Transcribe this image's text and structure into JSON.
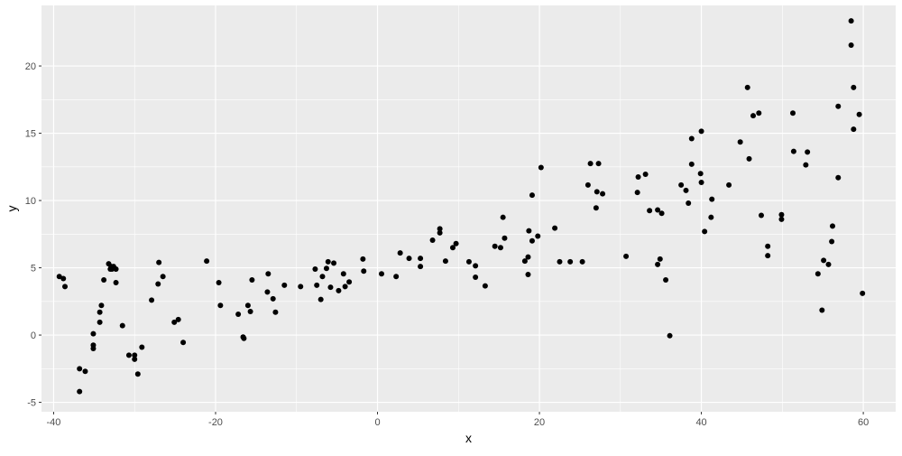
{
  "chart_data": {
    "type": "scatter",
    "xlabel": "x",
    "ylabel": "y",
    "xlim": [
      -41.5,
      64
    ],
    "ylim": [
      -5.7,
      24.5
    ],
    "x_ticks": [
      -40,
      -20,
      0,
      20,
      40,
      60
    ],
    "y_ticks": [
      -5,
      0,
      5,
      10,
      15,
      20
    ],
    "grid": true,
    "panel_background": "#EBEBEB",
    "point_color": "#000000",
    "x": [
      -39.3,
      -38.8,
      -38.6,
      -36.8,
      -36.8,
      -36.1,
      -35.1,
      -35.1,
      -35.1,
      -34.3,
      -34.3,
      -34.1,
      -33.8,
      -33.2,
      -33.0,
      -32.9,
      -32.8,
      -32.6,
      -32.3,
      -32.3,
      -31.5,
      -30.7,
      -30.0,
      -30.0,
      -29.6,
      -29.1,
      -27.9,
      -27.1,
      -27.0,
      -26.5,
      -25.1,
      -24.6,
      -24.0,
      -21.1,
      -19.6,
      -19.4,
      -17.2,
      -16.6,
      -16.5,
      -16.0,
      -15.7,
      -15.5,
      -13.6,
      -13.5,
      -12.9,
      -12.6,
      -11.5,
      -9.5,
      -7.7,
      -7.5,
      -7.0,
      -6.8,
      -6.3,
      -6.1,
      -5.8,
      -5.4,
      -4.8,
      -4.2,
      -4.0,
      -3.5,
      -1.8,
      -1.7,
      0.5,
      2.3,
      2.8,
      3.9,
      5.3,
      5.3,
      6.8,
      7.7,
      7.7,
      8.4,
      9.3,
      9.7,
      11.3,
      12.1,
      12.1,
      13.3,
      14.5,
      15.2,
      15.5,
      15.7,
      18.2,
      18.6,
      18.6,
      18.7,
      19.1,
      19.1,
      19.8,
      20.2,
      21.9,
      22.5,
      23.8,
      25.3,
      26.0,
      26.3,
      27.0,
      27.1,
      27.3,
      27.8,
      30.7,
      32.1,
      32.2,
      33.1,
      33.6,
      34.6,
      34.6,
      34.9,
      35.1,
      35.6,
      36.1,
      37.5,
      38.1,
      38.4,
      38.8,
      38.8,
      39.9,
      40.0,
      40.0,
      40.4,
      41.2,
      41.3,
      43.4,
      44.8,
      45.7,
      45.9,
      46.4,
      47.1,
      47.4,
      48.2,
      48.2,
      49.9,
      49.9,
      51.3,
      51.4,
      52.9,
      53.1,
      54.4,
      54.9,
      55.1,
      55.7,
      56.1,
      56.2,
      56.9,
      56.9,
      58.5,
      58.5,
      58.8,
      58.8,
      59.5,
      59.9
    ],
    "y": [
      4.35,
      4.2,
      3.6,
      -2.5,
      -4.2,
      -2.7,
      0.1,
      -0.75,
      -1.0,
      0.95,
      1.7,
      2.2,
      4.1,
      5.3,
      4.9,
      5.1,
      4.9,
      5.1,
      4.9,
      3.9,
      0.7,
      -1.5,
      -1.5,
      -1.8,
      -2.9,
      -0.9,
      2.6,
      3.8,
      5.4,
      4.35,
      0.95,
      1.15,
      -0.55,
      5.5,
      3.9,
      2.2,
      1.55,
      -0.15,
      -0.25,
      2.2,
      1.75,
      4.1,
      3.2,
      4.55,
      2.7,
      1.7,
      3.7,
      3.6,
      4.9,
      3.7,
      2.65,
      4.35,
      4.95,
      5.45,
      3.55,
      5.35,
      3.3,
      4.55,
      3.6,
      3.95,
      5.65,
      4.75,
      4.55,
      4.35,
      6.1,
      5.7,
      5.7,
      5.1,
      7.05,
      7.9,
      7.6,
      5.5,
      6.5,
      6.8,
      5.45,
      5.15,
      4.3,
      3.65,
      6.6,
      6.5,
      8.75,
      7.2,
      5.5,
      5.8,
      4.5,
      7.75,
      7.0,
      10.4,
      7.35,
      12.45,
      7.95,
      5.45,
      5.45,
      5.45,
      11.15,
      12.75,
      9.45,
      10.65,
      12.75,
      10.5,
      5.85,
      10.6,
      11.75,
      11.95,
      9.25,
      9.3,
      5.25,
      5.65,
      9.05,
      4.1,
      -0.05,
      11.15,
      10.75,
      9.8,
      14.6,
      12.7,
      12.0,
      11.35,
      15.15,
      7.7,
      8.75,
      10.1,
      11.15,
      14.35,
      18.4,
      13.1,
      16.3,
      16.5,
      8.9,
      6.6,
      5.9,
      8.95,
      8.6,
      16.5,
      13.65,
      12.65,
      13.6,
      4.55,
      1.85,
      5.55,
      5.25,
      6.95,
      8.1,
      17.0,
      11.7,
      23.35,
      21.55,
      18.4,
      15.3,
      16.4,
      3.1
    ]
  }
}
